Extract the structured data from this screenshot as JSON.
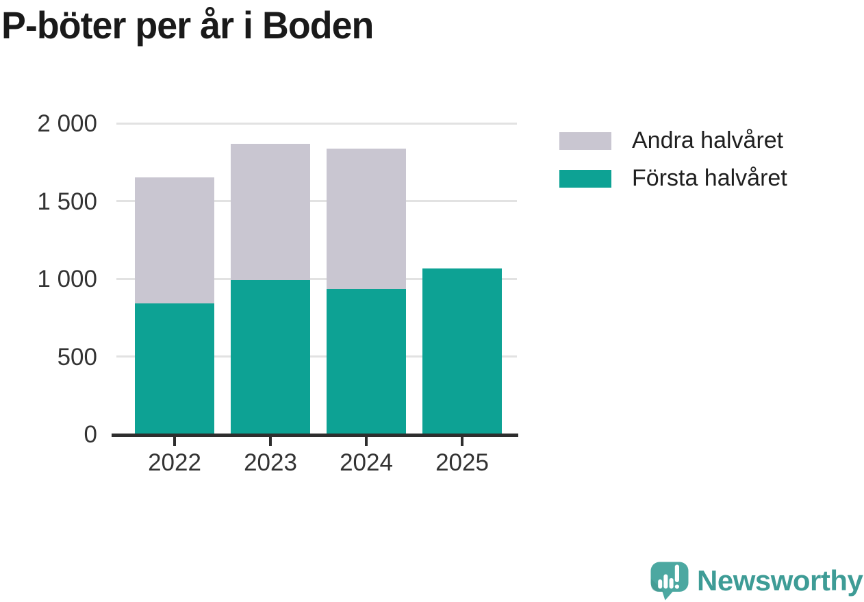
{
  "title": "P-böter per år i Boden",
  "chart_data": {
    "type": "bar",
    "stacked": true,
    "title": "P-böter per år i Boden",
    "categories": [
      "2022",
      "2023",
      "2024",
      "2025"
    ],
    "series": [
      {
        "name": "Första halvåret",
        "color": "#0da294",
        "values": [
          840,
          990,
          935,
          1065
        ]
      },
      {
        "name": "Andra halvåret",
        "color": "#c9c6d1",
        "values": [
          810,
          880,
          900,
          null
        ]
      }
    ],
    "totals": [
      1650,
      1870,
      1835,
      1065
    ],
    "xlabel": "",
    "ylabel": "",
    "ylim": [
      0,
      2000
    ],
    "yticks": [
      {
        "value": 0,
        "label": "0"
      },
      {
        "value": 500,
        "label": "500"
      },
      {
        "value": 1000,
        "label": "1 000"
      },
      {
        "value": 1500,
        "label": "1 500"
      },
      {
        "value": 2000,
        "label": "2 000"
      }
    ],
    "grid": "horizontal",
    "legend_position": "right-top"
  },
  "legend": {
    "items": [
      {
        "label": "Andra halvåret",
        "color": "#c9c6d1"
      },
      {
        "label": "Första halvåret",
        "color": "#0da294"
      }
    ]
  },
  "branding": {
    "name": "Newsworthy",
    "logo_icon": "bar-chart-speech-bubble-icon",
    "mark_color": "#4ca8a1",
    "mark_shade_color": "#3f948d",
    "text_color": "#3e9c96"
  },
  "colors": {
    "first_half": "#0da294",
    "second_half": "#c9c6d1",
    "axis": "#2e2e2e",
    "gridline": "#e2e2e2",
    "tick_text": "#333333",
    "title_text": "#1a1a1a"
  }
}
